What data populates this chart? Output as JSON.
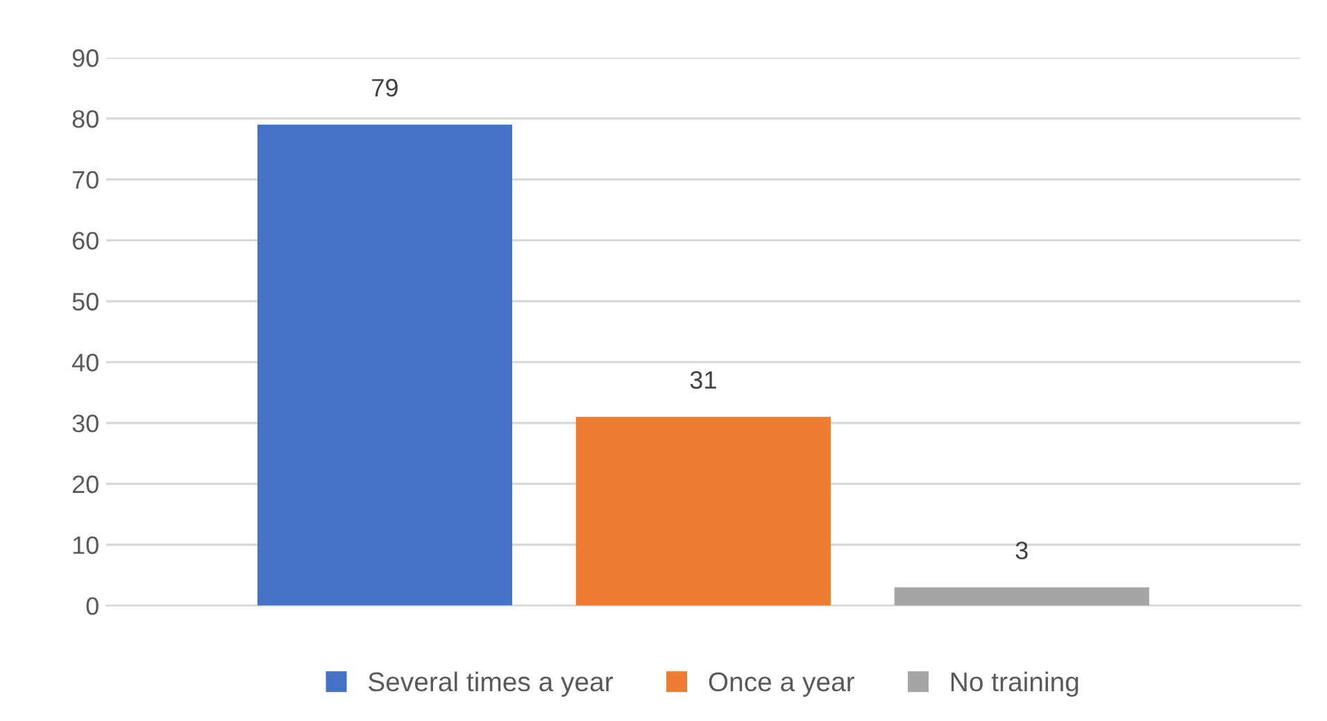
{
  "chart_data": {
    "type": "bar",
    "categories": [
      null
    ],
    "series": [
      {
        "name": "Several times a year",
        "color": "#4472c4",
        "values": [
          79
        ]
      },
      {
        "name": "Once a year",
        "color": "#ed7d31",
        "values": [
          31
        ]
      },
      {
        "name": "No training",
        "color": "#a5a5a5",
        "values": [
          3
        ]
      }
    ],
    "ylim": [
      0,
      90
    ],
    "yticks": [
      0,
      10,
      20,
      30,
      40,
      50,
      60,
      70,
      80,
      90
    ],
    "grid": "y",
    "legend": "bottom",
    "data_labels": true
  }
}
